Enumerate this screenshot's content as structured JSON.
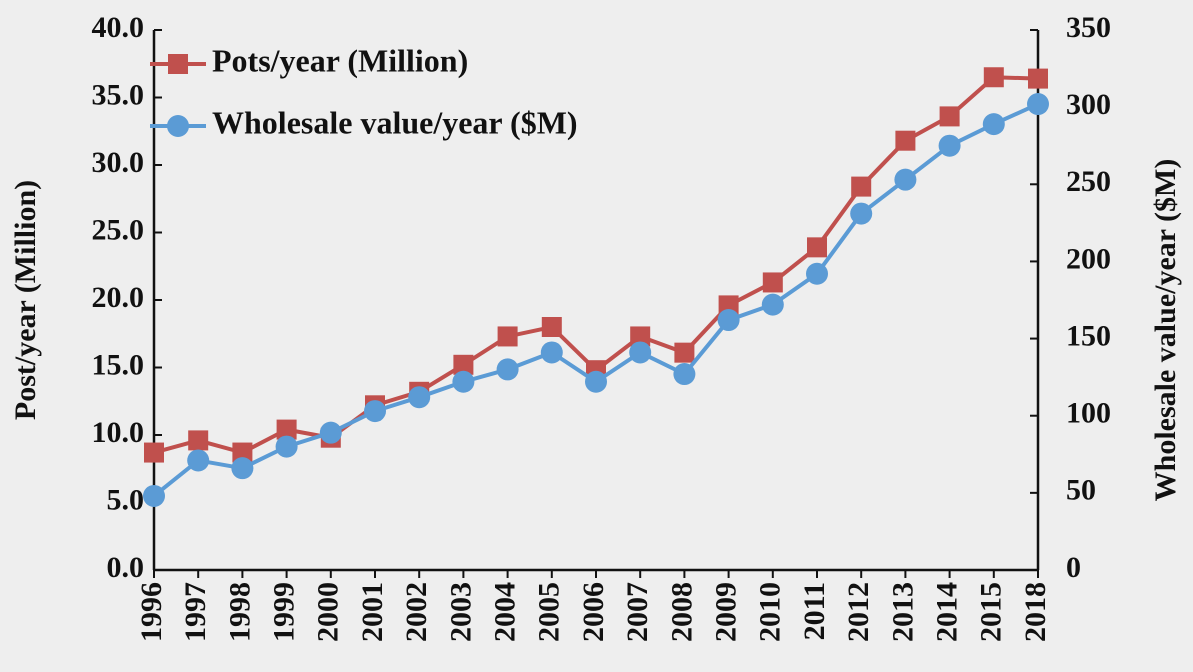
{
  "chart_data": {
    "type": "line",
    "categories": [
      "1996",
      "1997",
      "1998",
      "1999",
      "2000",
      "2001",
      "2002",
      "2003",
      "2004",
      "2005",
      "2006",
      "2007",
      "2008",
      "2009",
      "2010",
      "2011",
      "2012",
      "2013",
      "2014",
      "2015",
      "2018"
    ],
    "series": [
      {
        "name": "Pots/year (Million)",
        "color": "#c0504d",
        "marker": "square",
        "axis": "y",
        "values": [
          8.7,
          9.6,
          8.7,
          10.4,
          9.8,
          12.2,
          13.2,
          15.2,
          17.3,
          18.0,
          14.8,
          17.3,
          16.1,
          19.6,
          21.3,
          23.9,
          28.4,
          31.8,
          33.6,
          36.5,
          36.4
        ]
      },
      {
        "name": "Wholesale value/year ($M)",
        "color": "#5b9bd5",
        "marker": "circle",
        "axis": "y2",
        "values": [
          48,
          71,
          66,
          80,
          89,
          103,
          112,
          122,
          130,
          141,
          122,
          141,
          127,
          162,
          172,
          192,
          231,
          253,
          275,
          289,
          302
        ]
      }
    ],
    "y_label": "Post/year (Million)",
    "y2_label": "Wholesale value/year ($M)",
    "ylim": [
      0,
      40
    ],
    "yticks": [
      {
        "value": 0,
        "label": "0.0"
      },
      {
        "value": 5,
        "label": "5.0"
      },
      {
        "value": 10,
        "label": "10.0"
      },
      {
        "value": 15,
        "label": "15.0"
      },
      {
        "value": 20,
        "label": "20.0"
      },
      {
        "value": 25,
        "label": "25.0"
      },
      {
        "value": 30,
        "label": "30.0"
      },
      {
        "value": 35,
        "label": "35.0"
      },
      {
        "value": 40,
        "label": "40.0"
      }
    ],
    "y2lim": [
      0,
      350
    ],
    "y2ticks": [
      0,
      50,
      100,
      150,
      200,
      250,
      300,
      350
    ],
    "legend": "upper left",
    "grid": false
  }
}
